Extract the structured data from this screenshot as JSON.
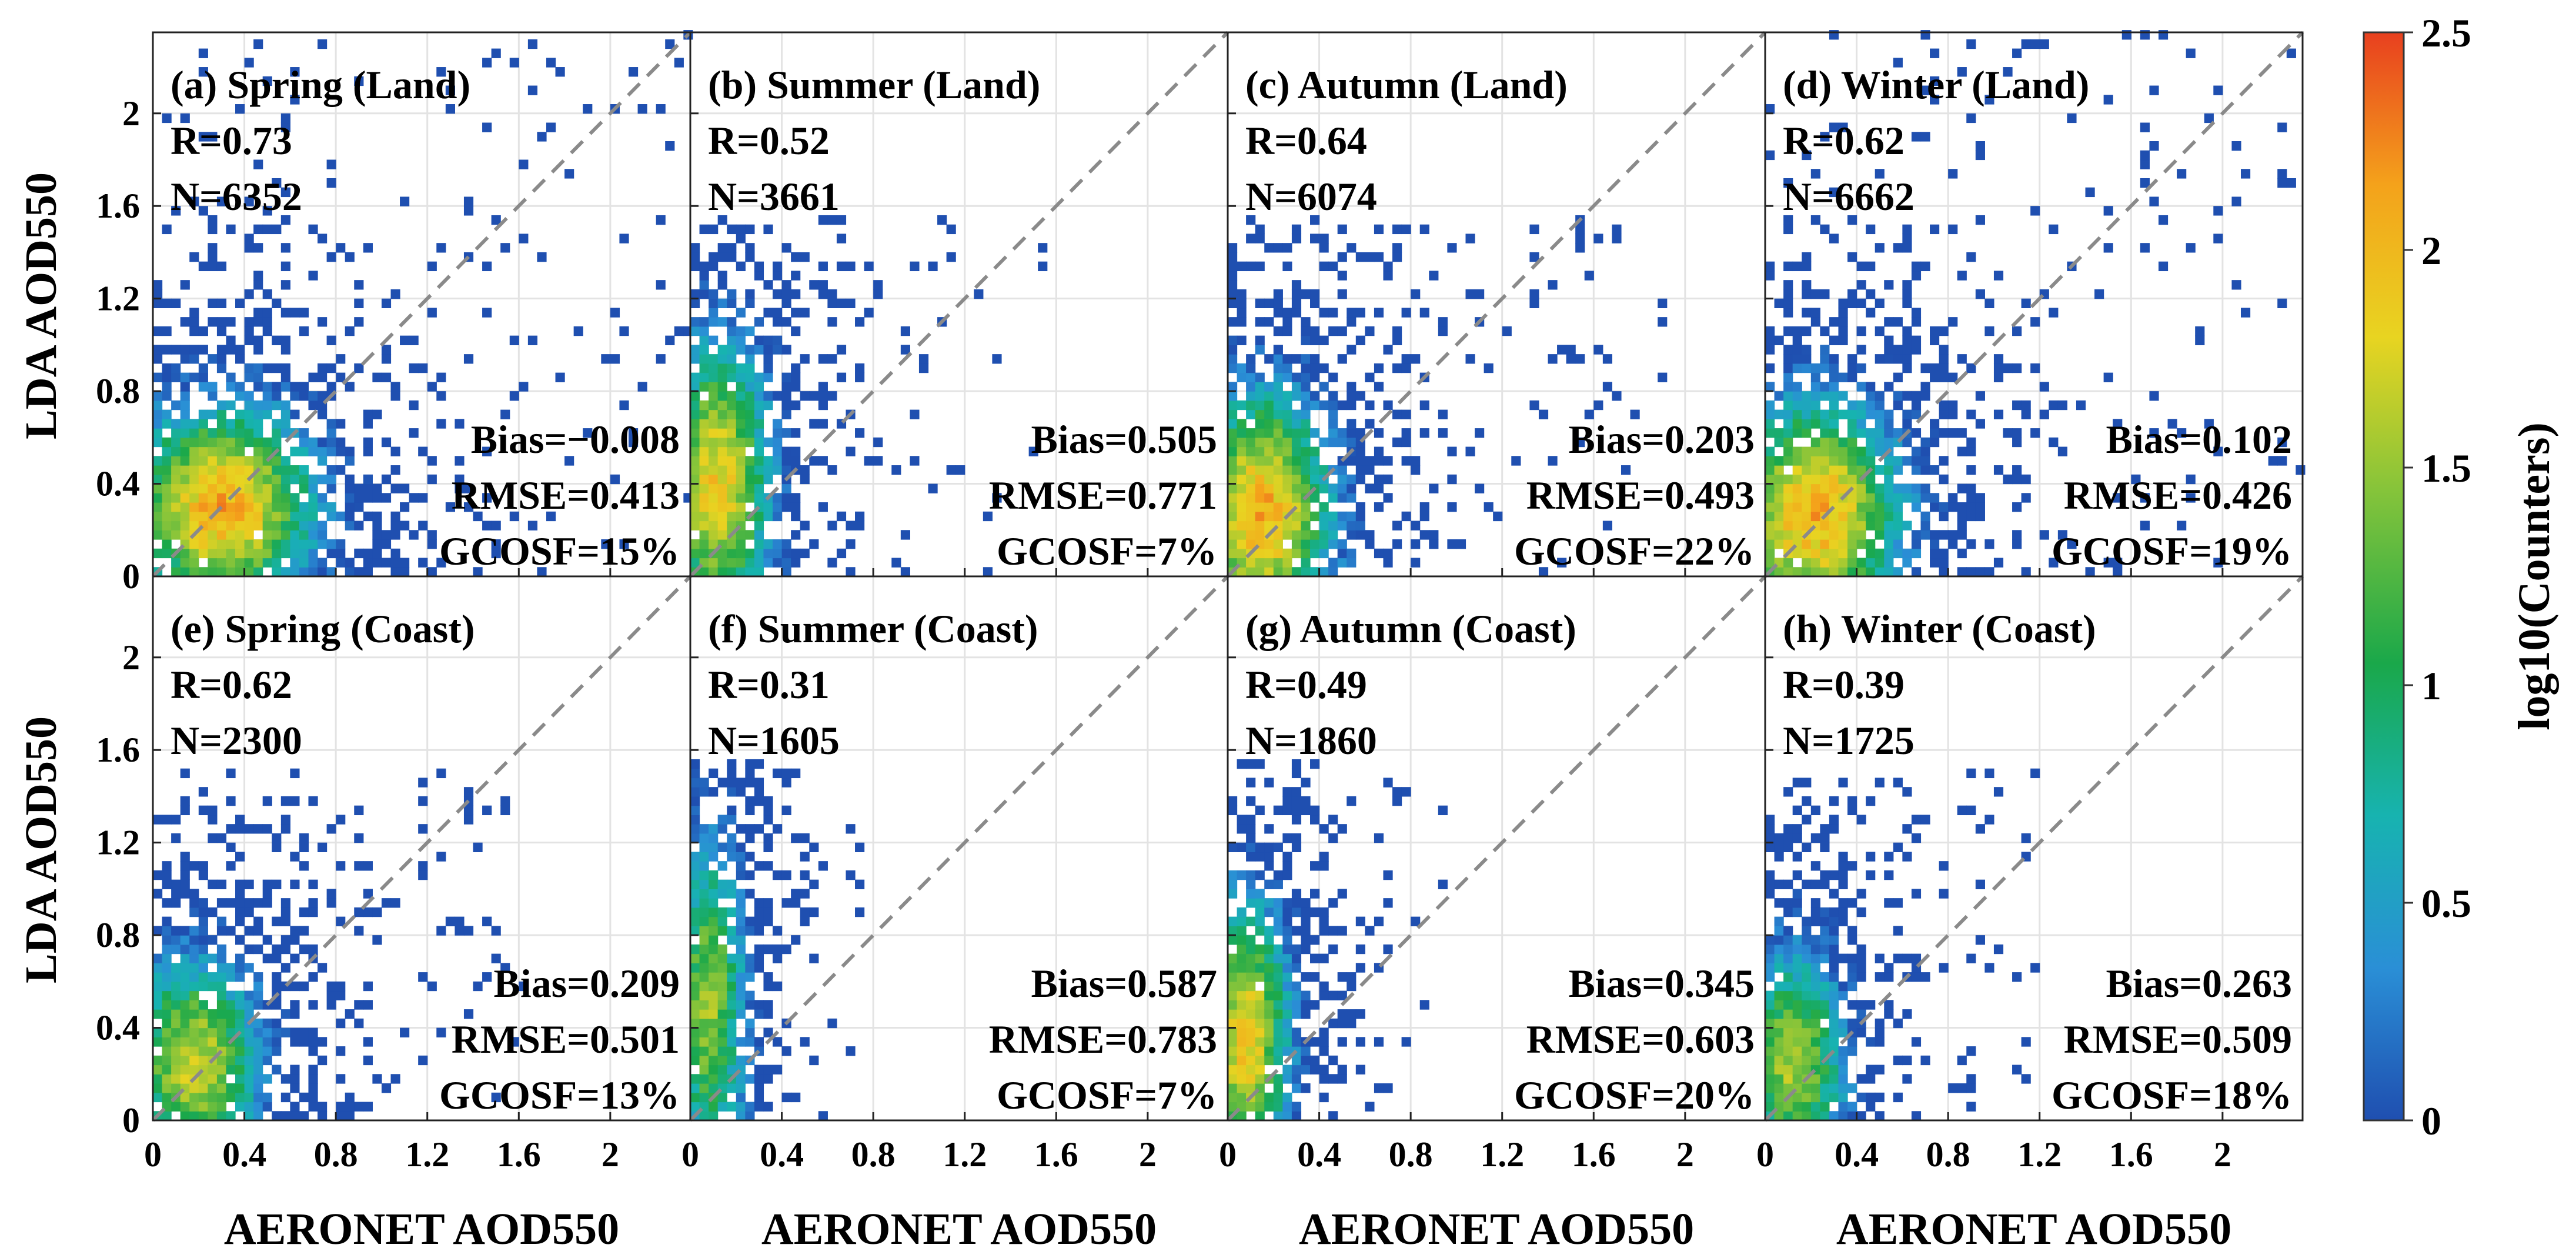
{
  "chart_data": {
    "type": "heatmap",
    "x_axis_label": "AERONET AOD550",
    "y_axis_label": "LDA AOD550",
    "x_ticks": [
      "0",
      "0.4",
      "0.8",
      "1.2",
      "1.6",
      "2"
    ],
    "x_tick_values": [
      0,
      0.4,
      0.8,
      1.2,
      1.6,
      2.0
    ],
    "y_ticks": [
      "0",
      "0.4",
      "0.8",
      "1.2",
      "1.6",
      "2"
    ],
    "y_tick_values": [
      0,
      0.4,
      0.8,
      1.2,
      1.6,
      2.0
    ],
    "xlim": [
      0,
      2.35
    ],
    "ylim": [
      0,
      2.35
    ],
    "grid": true,
    "reference_line": "1:1 dashed",
    "colorbar": {
      "label": "log10(Counters)",
      "range": [
        0,
        2.5
      ],
      "ticks": [
        "0",
        "0.5",
        "1",
        "1.5",
        "2",
        "2.5"
      ],
      "tick_values": [
        0,
        0.5,
        1,
        1.5,
        2,
        2.5
      ],
      "colormap": [
        "#1f4fb0",
        "#2a8fd6",
        "#17b3b0",
        "#1aa84a",
        "#86c43a",
        "#e8d421",
        "#f4a21b",
        "#e8401f"
      ]
    },
    "panels": [
      {
        "title": "(a) Spring (Land)",
        "R": "R=0.73",
        "N": "N=6352",
        "bias": "Bias=−0.008",
        "rmse": "RMSE=0.413",
        "gcosf": "GCOSF=15%",
        "x_center": 0.3,
        "y_center": 0.3,
        "x_spread": 0.3,
        "y_spread": 0.32,
        "log_peak": 2.1,
        "x_max": 2.35,
        "y_max": 2.35
      },
      {
        "title": "(b) Summer (Land)",
        "R": "R=0.52",
        "N": "N=3661",
        "bias": "Bias=0.505",
        "rmse": "RMSE=0.771",
        "gcosf": "GCOSF=7%",
        "x_center": 0.12,
        "y_center": 0.4,
        "x_spread": 0.17,
        "y_spread": 0.45,
        "log_peak": 1.9,
        "x_max": 1.55,
        "y_max": 1.55
      },
      {
        "title": "(c) Autumn (Land)",
        "R": "R=0.64",
        "N": "N=6074",
        "bias": "Bias=0.203",
        "rmse": "RMSE=0.493",
        "gcosf": "GCOSF=22%",
        "x_center": 0.15,
        "y_center": 0.28,
        "x_spread": 0.22,
        "y_spread": 0.38,
        "log_peak": 2.1,
        "x_max": 1.95,
        "y_max": 1.55
      },
      {
        "title": "(d) Winter (Land)",
        "R": "R=0.62",
        "N": "N=6662",
        "bias": "Bias=0.102",
        "rmse": "RMSE=0.426",
        "gcosf": "GCOSF=19%",
        "x_center": 0.22,
        "y_center": 0.27,
        "x_spread": 0.27,
        "y_spread": 0.36,
        "log_peak": 2.1,
        "x_max": 2.35,
        "y_max": 2.35
      },
      {
        "title": "(e) Spring (Coast)",
        "R": "R=0.62",
        "N": "N=2300",
        "bias": "Bias=0.209",
        "rmse": "RMSE=0.501",
        "gcosf": "GCOSF=13%",
        "x_center": 0.18,
        "y_center": 0.25,
        "x_spread": 0.22,
        "y_spread": 0.33,
        "log_peak": 1.7,
        "x_max": 1.7,
        "y_max": 1.55
      },
      {
        "title": "(f) Summer (Coast)",
        "R": "R=0.31",
        "N": "N=1605",
        "bias": "Bias=0.587",
        "rmse": "RMSE=0.783",
        "gcosf": "GCOSF=7%",
        "x_center": 0.08,
        "y_center": 0.5,
        "x_spread": 0.12,
        "y_spread": 0.55,
        "log_peak": 1.5,
        "x_max": 0.75,
        "y_max": 1.55
      },
      {
        "title": "(g) Autumn (Coast)",
        "R": "R=0.49",
        "N": "N=1860",
        "bias": "Bias=0.345",
        "rmse": "RMSE=0.603",
        "gcosf": "GCOSF=20%",
        "x_center": 0.08,
        "y_center": 0.35,
        "x_spread": 0.14,
        "y_spread": 0.45,
        "log_peak": 1.9,
        "x_max": 0.95,
        "y_max": 1.55
      },
      {
        "title": "(h) Winter (Coast)",
        "R": "R=0.39",
        "N": "N=1725",
        "bias": "Bias=0.263",
        "rmse": "RMSE=0.509",
        "gcosf": "GCOSF=18%",
        "x_center": 0.12,
        "y_center": 0.25,
        "x_spread": 0.17,
        "y_spread": 0.36,
        "log_peak": 1.6,
        "x_max": 1.2,
        "y_max": 1.55
      }
    ]
  }
}
